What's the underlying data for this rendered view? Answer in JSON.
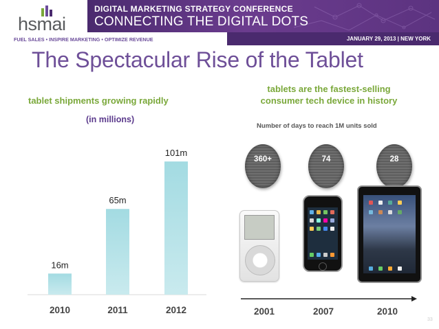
{
  "header": {
    "logo": "hsmai",
    "tagline": "FUEL SALES • INSPIRE MARKETING • OPTIMIZE REVENUE",
    "banner_line1": "DIGITAL MARKETING STRATEGY CONFERENCE",
    "banner_line2": "CONNECTING THE DIGITAL DOTS",
    "date": "JANUARY 29, 2013  |  NEW YORK"
  },
  "title": "The Spectacular Rise of the Tablet",
  "left": {
    "subtitle": "tablet shipments growing rapidly",
    "units": "(in millions)"
  },
  "chart_data": {
    "type": "bar",
    "title": "tablet shipments growing rapidly",
    "ylabel": "(in millions)",
    "categories": [
      "2010",
      "2011",
      "2012"
    ],
    "values": [
      16,
      65,
      101
    ],
    "data_labels": [
      "16m",
      "65m",
      "101m"
    ],
    "ylim": [
      0,
      110
    ],
    "grid": false
  },
  "right": {
    "subtitle_line1": "tablets are the fastest-selling",
    "subtitle_line2": "consumer tech device in history",
    "days_label": "Number of days to reach 1M units sold",
    "items": [
      {
        "days": "360+",
        "year": "2001",
        "device": "ipod"
      },
      {
        "days": "74",
        "year": "2007",
        "device": "iphone"
      },
      {
        "days": "28",
        "year": "2010",
        "device": "ipad"
      }
    ]
  },
  "footer": {
    "page": "33"
  },
  "colors": {
    "title": "#6e4f98",
    "subtitle": "#7aa83a",
    "bar": "#a9dde3",
    "axis_label": "#444444"
  }
}
